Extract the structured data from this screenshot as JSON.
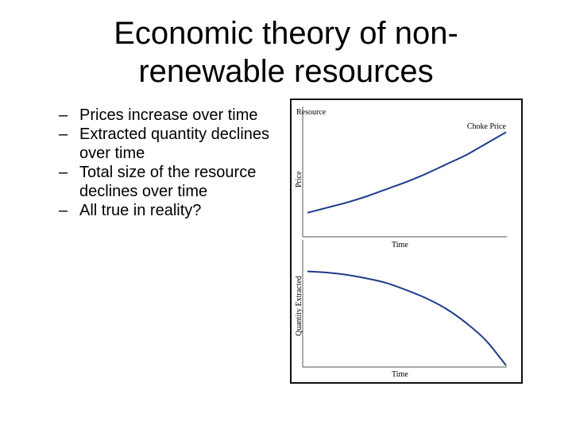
{
  "slide": {
    "title_line1": "Economic theory of non-",
    "title_line2": "renewable resources"
  },
  "bullets": [
    "Prices increase over time",
    "Extracted quantity declines over time",
    "Total size of the resource declines over time",
    "All true in reality?"
  ],
  "bullet_marker": "–",
  "chart_data": [
    {
      "type": "line",
      "title": "Resource",
      "xlabel": "Time",
      "ylabel": "Price",
      "annotation": "Choke Price",
      "x": [
        0,
        0.1,
        0.2,
        0.3,
        0.4,
        0.5,
        0.6,
        0.7,
        0.8,
        0.9,
        1.0
      ],
      "series": [
        {
          "values": [
            0.14,
            0.19,
            0.24,
            0.3,
            0.37,
            0.44,
            0.52,
            0.61,
            0.7,
            0.81,
            0.92
          ]
        }
      ],
      "xlim": [
        0,
        1
      ],
      "ylim": [
        0,
        1
      ],
      "grid": false,
      "color": "#1f3a8a"
    },
    {
      "type": "line",
      "title": "",
      "xlabel": "Time",
      "ylabel": "Quantity Extracted",
      "x": [
        0,
        0.1,
        0.2,
        0.3,
        0.4,
        0.5,
        0.6,
        0.7,
        0.8,
        0.9,
        1.0
      ],
      "series": [
        {
          "values": [
            0.8,
            0.79,
            0.77,
            0.74,
            0.7,
            0.64,
            0.57,
            0.48,
            0.36,
            0.21,
            0.0
          ]
        }
      ],
      "xlim": [
        0,
        1
      ],
      "ylim": [
        0,
        1
      ],
      "grid": false,
      "color": "#1f3a8a"
    }
  ]
}
